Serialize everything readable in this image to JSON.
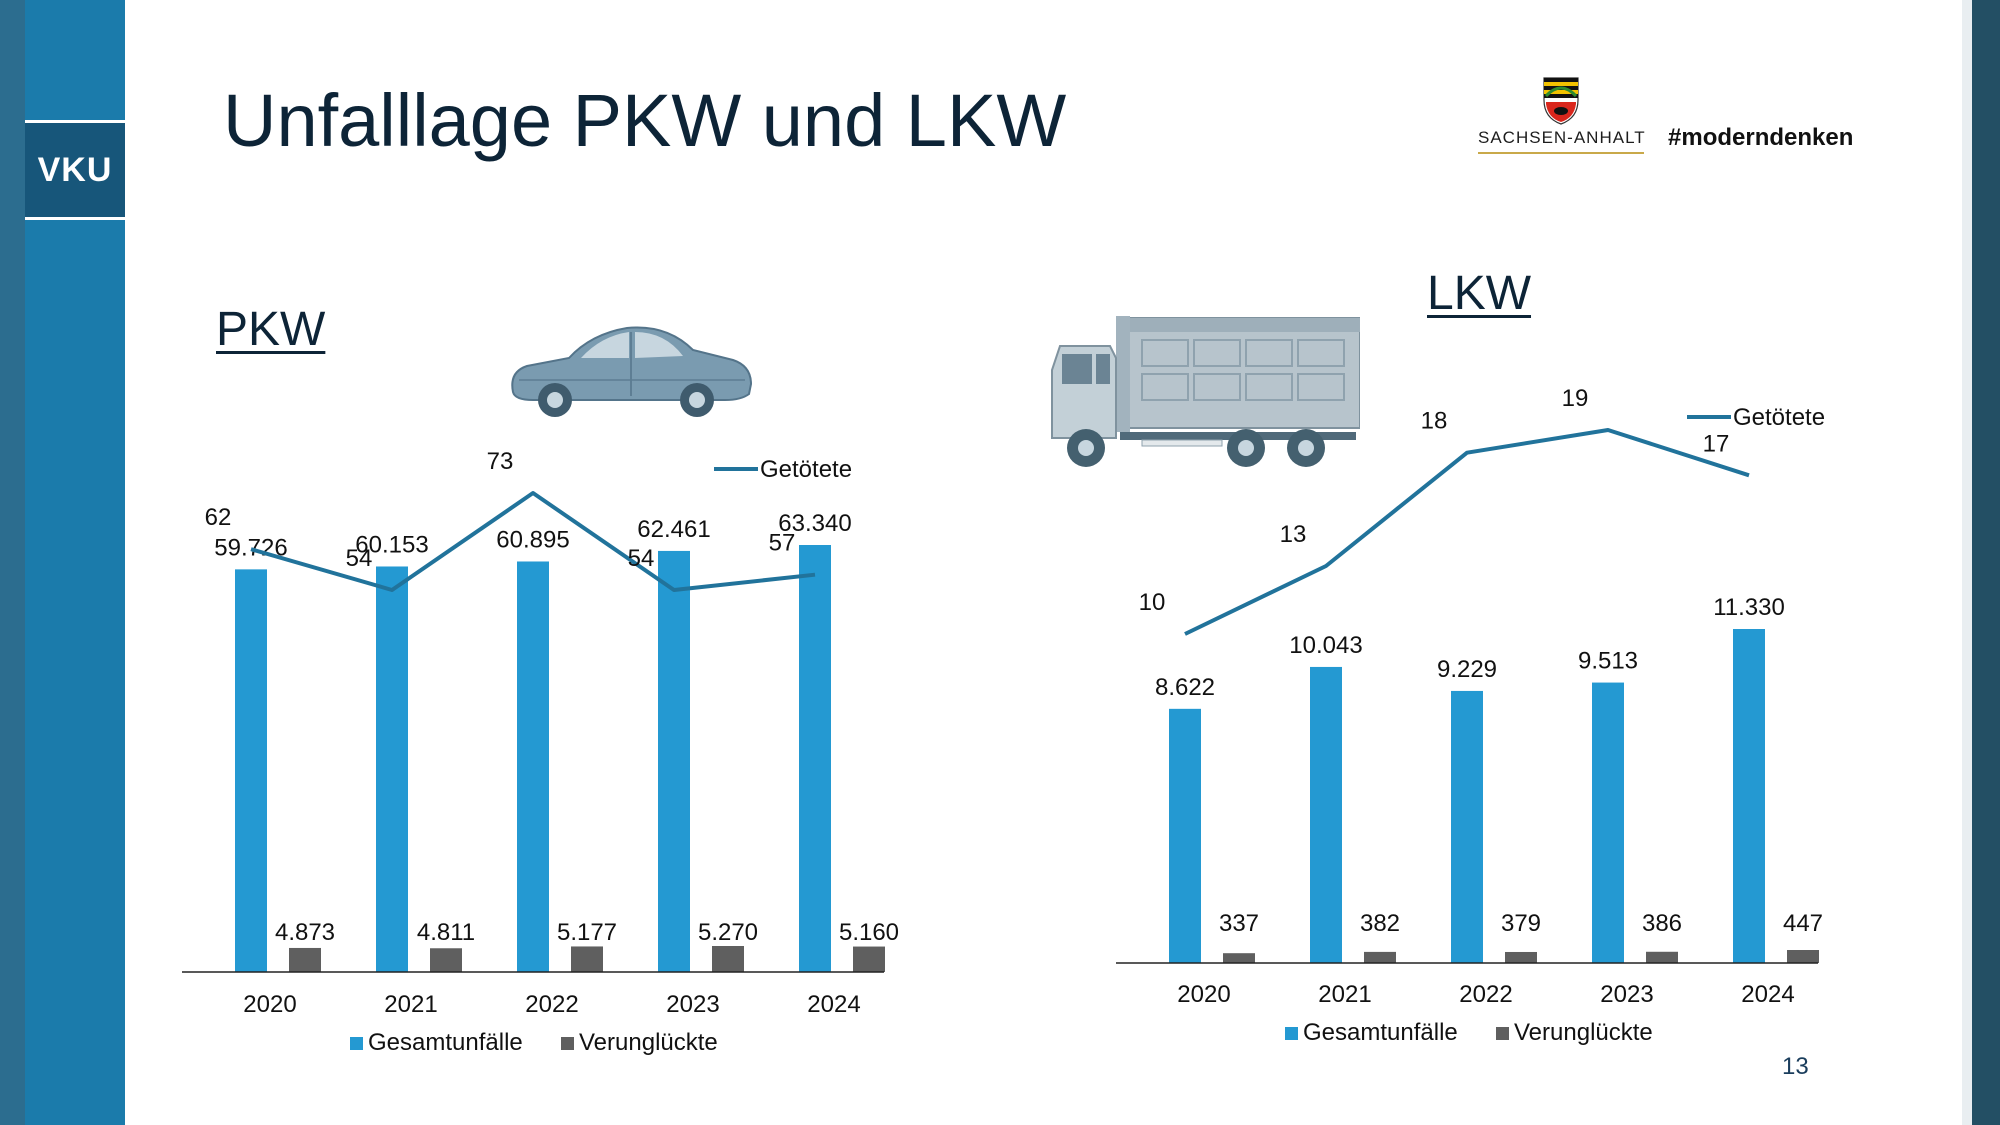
{
  "slide": {
    "title": "Unfalllage PKW und LKW",
    "page_number": "13",
    "brand": "VKU",
    "logo_text": "SACHSEN-ANHALT",
    "hashtag": "#moderndenken"
  },
  "colors": {
    "bar_total": "#2499d2",
    "bar_injured": "#5f5f5f",
    "line": "#21739b",
    "sidebar": "#1b7bab",
    "title": "#0d2437"
  },
  "icons": [
    "car-icon",
    "truck-icon",
    "coat-of-arms-icon"
  ],
  "chart_data": [
    {
      "type": "bar",
      "title": "PKW",
      "categories": [
        "2020",
        "2021",
        "2022",
        "2023",
        "2024"
      ],
      "series": [
        {
          "name": "Gesamtunfälle",
          "values": [
            59726,
            60153,
            60895,
            62461,
            63340
          ],
          "labels": [
            "59.726",
            "60.153",
            "60.895",
            "62.461",
            "63.340"
          ]
        },
        {
          "name": "Verunglückte",
          "values": [
            4873,
            4811,
            5177,
            5270,
            5160
          ],
          "labels": [
            "4.873",
            "4.811",
            "5.177",
            "5.270",
            "5.160"
          ]
        }
      ],
      "line_series": {
        "name": "Getötete",
        "values": [
          62,
          54,
          73,
          54,
          57
        ],
        "labels": [
          "62",
          "54",
          "73",
          "54",
          "57"
        ]
      },
      "legend_position": "bottom",
      "line_legend_position": "top-right",
      "grid": false
    },
    {
      "type": "bar",
      "title": "LKW",
      "categories": [
        "2020",
        "2021",
        "2022",
        "2023",
        "2024"
      ],
      "series": [
        {
          "name": "Gesamtunfälle",
          "values": [
            8622,
            10043,
            9229,
            9513,
            11330
          ],
          "labels": [
            "8.622",
            "10.043",
            "9.229",
            "9.513",
            "11.330"
          ]
        },
        {
          "name": "Verunglückte",
          "values": [
            337,
            382,
            379,
            386,
            447
          ],
          "labels": [
            "337",
            "382",
            "379",
            "386",
            "447"
          ]
        }
      ],
      "line_series": {
        "name": "Getötete",
        "values": [
          10,
          13,
          18,
          19,
          17
        ],
        "labels": [
          "10",
          "13",
          "18",
          "19",
          "17"
        ]
      },
      "legend_position": "bottom",
      "line_legend_position": "top-right",
      "grid": false
    }
  ]
}
